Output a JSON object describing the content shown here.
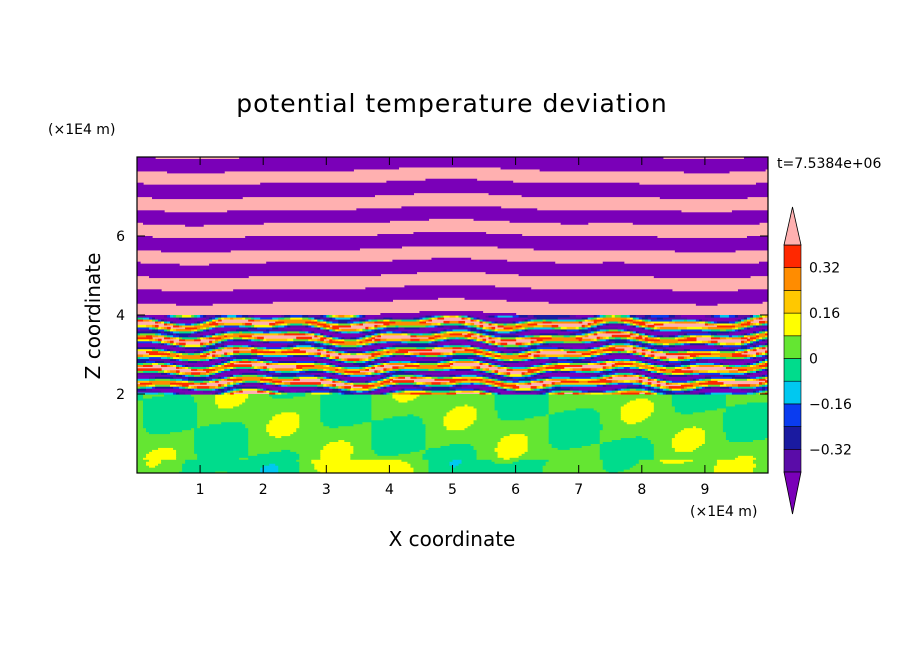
{
  "chart_data": {
    "type": "heatmap",
    "title": "potential temperature deviation",
    "xlabel": "X coordinate",
    "ylabel": "Z coordinate",
    "x_unit": "(×1E4 m)",
    "y_unit": "(×1E4 m)",
    "time_label": "t=7.5384e+06",
    "xlim": [
      0,
      10
    ],
    "ylim": [
      0,
      8
    ],
    "x_ticks": [
      "1",
      "2",
      "3",
      "4",
      "5",
      "6",
      "7",
      "8",
      "9"
    ],
    "y_ticks": [
      "2",
      "4",
      "6"
    ],
    "colorbar": {
      "levels": [
        -0.48,
        -0.4,
        -0.32,
        -0.24,
        -0.16,
        -0.08,
        0,
        0.08,
        0.16,
        0.24,
        0.32,
        0.4,
        0.48
      ],
      "colors": [
        "#7a00b8",
        "#5a0ca8",
        "#1a1aa0",
        "#0a3cf0",
        "#00c8f0",
        "#00dc8c",
        "#64e632",
        "#ffff00",
        "#ffc800",
        "#ff8c00",
        "#ff2800",
        "#ffb0b0"
      ],
      "labels": [
        "0.32",
        "0.16",
        "0",
        "−0.16",
        "−0.32"
      ],
      "label_values": [
        0.32,
        0.16,
        0,
        -0.16,
        -0.32
      ]
    },
    "regions": [
      {
        "z_range": [
          0,
          2
        ],
        "description": "lower layer dominated by values near 0 (green / cyan-green)"
      },
      {
        "z_range": [
          2,
          4
        ],
        "description": "turbulent layer with mixed values from -0.48 to 0.48"
      },
      {
        "z_range": [
          4,
          8
        ],
        "description": "alternating bands of strongly positive (pink) and strongly negative (purple)"
      }
    ]
  }
}
